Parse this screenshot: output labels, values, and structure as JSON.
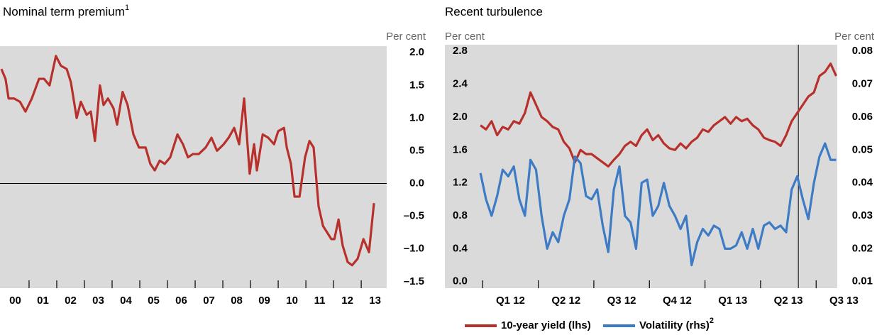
{
  "chart_data": [
    {
      "type": "line",
      "title": "Nominal term premium",
      "title_footnote": "1",
      "y_axis_label": "Per cent",
      "xlim": [
        1999.95,
        2013.92
      ],
      "xticks": [
        {
          "value": 2000.5,
          "label": "00"
        },
        {
          "value": 2001.5,
          "label": "01"
        },
        {
          "value": 2002.5,
          "label": "02"
        },
        {
          "value": 2003.5,
          "label": "03"
        },
        {
          "value": 2004.5,
          "label": "04"
        },
        {
          "value": 2005.5,
          "label": "05"
        },
        {
          "value": 2006.5,
          "label": "06"
        },
        {
          "value": 2007.5,
          "label": "07"
        },
        {
          "value": 2008.5,
          "label": "08"
        },
        {
          "value": 2009.5,
          "label": "09"
        },
        {
          "value": 2010.5,
          "label": "10"
        },
        {
          "value": 2011.5,
          "label": "11"
        },
        {
          "value": 2012.5,
          "label": "12"
        },
        {
          "value": 2013.5,
          "label": "13"
        }
      ],
      "ylim": [
        -1.6,
        2.1
      ],
      "yticks": [
        {
          "value": 2,
          "label": "2.0"
        },
        1.5,
        {
          "value": 1,
          "label": "1.0"
        },
        0.5,
        {
          "value": 0,
          "label": "0.0"
        },
        {
          "value": -0.5,
          "label": "–0.5"
        },
        {
          "value": -1,
          "label": "–1.0"
        },
        {
          "value": -1.5,
          "label": "–1.5"
        }
      ],
      "zero_line": true,
      "x": [
        2000.0,
        2000.15,
        2000.26,
        2000.46,
        2000.67,
        2000.87,
        2001.1,
        2001.36,
        2001.54,
        2001.74,
        2001.97,
        2002.15,
        2002.36,
        2002.51,
        2002.72,
        2002.87,
        2003.08,
        2003.23,
        2003.38,
        2003.56,
        2003.69,
        2003.85,
        2004.05,
        2004.18,
        2004.38,
        2004.56,
        2004.77,
        2004.97,
        2005.21,
        2005.38,
        2005.54,
        2005.72,
        2005.9,
        2006.1,
        2006.36,
        2006.56,
        2006.74,
        2006.92,
        2007.13,
        2007.38,
        2007.59,
        2007.79,
        2008.03,
        2008.21,
        2008.41,
        2008.59,
        2008.77,
        2008.97,
        2009.13,
        2009.23,
        2009.44,
        2009.64,
        2009.85,
        2010.0,
        2010.21,
        2010.31,
        2010.46,
        2010.59,
        2010.77,
        2010.97,
        2011.13,
        2011.28,
        2011.46,
        2011.62,
        2011.77,
        2011.92,
        2012.03,
        2012.18,
        2012.33,
        2012.51,
        2012.67,
        2012.87,
        2013.08,
        2013.28,
        2013.46
      ],
      "series": [
        {
          "color": "#b8302c",
          "values": [
            1.75,
            1.6,
            1.3,
            1.3,
            1.25,
            1.1,
            1.3,
            1.6,
            1.6,
            1.5,
            1.95,
            1.8,
            1.75,
            1.55,
            1.0,
            1.25,
            1.05,
            1.1,
            0.65,
            1.5,
            1.2,
            1.3,
            1.15,
            0.9,
            1.4,
            1.2,
            0.75,
            0.55,
            0.55,
            0.3,
            0.2,
            0.35,
            0.3,
            0.4,
            0.75,
            0.6,
            0.4,
            0.45,
            0.45,
            0.55,
            0.7,
            0.5,
            0.6,
            0.7,
            0.85,
            0.6,
            1.3,
            0.15,
            0.6,
            0.2,
            0.75,
            0.7,
            0.6,
            0.8,
            0.85,
            0.55,
            0.3,
            -0.2,
            -0.2,
            0.4,
            0.65,
            0.55,
            -0.35,
            -0.65,
            -0.75,
            -0.85,
            -0.85,
            -0.55,
            -0.95,
            -1.2,
            -1.25,
            -1.15,
            -0.85,
            -1.05,
            -0.3
          ]
        }
      ]
    },
    {
      "type": "line",
      "title": "Recent turbulence",
      "y_axis_label": "Per cent",
      "y2_axis_label": "Per cent",
      "xlim": [
        2011.83,
        2013.595
      ],
      "xticks": [
        {
          "value": 2012.125,
          "label": "Q1 12"
        },
        {
          "value": 2012.375,
          "label": "Q2 12"
        },
        {
          "value": 2012.625,
          "label": "Q3 12"
        },
        {
          "value": 2012.875,
          "label": "Q4 12"
        },
        {
          "value": 2013.125,
          "label": "Q1 13"
        },
        {
          "value": 2013.375,
          "label": "Q2 13"
        },
        {
          "value": 2013.625,
          "label": "Q3 13"
        }
      ],
      "ylim": [
        -0.08,
        2.88
      ],
      "yticks": [
        {
          "value": 0,
          "label": "0.0"
        },
        0.4,
        0.8,
        1.2,
        1.6,
        {
          "value": 2,
          "label": "2.0"
        },
        2.4,
        2.8
      ],
      "y2lim": [
        0.008,
        0.082
      ],
      "y2ticks": [
        0.01,
        0.02,
        0.03,
        0.04,
        0.05,
        0.06,
        0.07,
        0.08
      ],
      "vline_x": 2013.42,
      "legend": "bottom",
      "x": [
        2011.99,
        2012.015,
        2012.04,
        2012.065,
        2012.09,
        2012.115,
        2012.14,
        2012.165,
        2012.19,
        2012.215,
        2012.24,
        2012.265,
        2012.29,
        2012.315,
        2012.34,
        2012.365,
        2012.39,
        2012.415,
        2012.44,
        2012.465,
        2012.49,
        2012.515,
        2012.54,
        2012.565,
        2012.59,
        2012.615,
        2012.64,
        2012.665,
        2012.69,
        2012.715,
        2012.74,
        2012.765,
        2012.79,
        2012.815,
        2012.84,
        2012.865,
        2012.89,
        2012.915,
        2012.94,
        2012.965,
        2012.99,
        2013.015,
        2013.04,
        2013.065,
        2013.09,
        2013.115,
        2013.14,
        2013.165,
        2013.19,
        2013.215,
        2013.24,
        2013.265,
        2013.29,
        2013.315,
        2013.34,
        2013.365,
        2013.39,
        2013.415,
        2013.44,
        2013.465,
        2013.49,
        2013.515,
        2013.54,
        2013.565,
        2013.59
      ],
      "series": [
        {
          "name": "10-year yield (lhs)",
          "color": "#b8302c",
          "values": [
            1.9,
            1.85,
            1.95,
            1.78,
            1.88,
            1.85,
            1.95,
            1.92,
            2.05,
            2.3,
            2.15,
            2.0,
            1.95,
            1.88,
            1.85,
            1.7,
            1.62,
            1.45,
            1.6,
            1.55,
            1.55,
            1.5,
            1.45,
            1.4,
            1.48,
            1.55,
            1.65,
            1.7,
            1.65,
            1.78,
            1.85,
            1.72,
            1.78,
            1.68,
            1.62,
            1.6,
            1.68,
            1.62,
            1.7,
            1.75,
            1.85,
            1.82,
            1.9,
            1.95,
            2.0,
            1.92,
            2.0,
            1.95,
            1.98,
            1.9,
            1.85,
            1.75,
            1.72,
            1.7,
            1.65,
            1.78,
            1.95,
            2.05,
            2.15,
            2.25,
            2.3,
            2.5,
            2.55,
            2.65,
            2.5
          ]
        },
        {
          "name": "Volatility (rhs)",
          "footnote": "2",
          "color": "#3d7bc4",
          "axis": "y2",
          "values": [
            0.043,
            0.035,
            0.03,
            0.036,
            0.044,
            0.042,
            0.045,
            0.035,
            0.03,
            0.047,
            0.044,
            0.03,
            0.02,
            0.025,
            0.022,
            0.03,
            0.035,
            0.048,
            0.046,
            0.036,
            0.035,
            0.038,
            0.027,
            0.019,
            0.038,
            0.045,
            0.03,
            0.028,
            0.02,
            0.04,
            0.041,
            0.03,
            0.033,
            0.04,
            0.033,
            0.03,
            0.026,
            0.03,
            0.015,
            0.022,
            0.026,
            0.024,
            0.027,
            0.026,
            0.02,
            0.02,
            0.021,
            0.025,
            0.02,
            0.026,
            0.02,
            0.027,
            0.028,
            0.026,
            0.027,
            0.025,
            0.038,
            0.042,
            0.035,
            0.029,
            0.04,
            0.048,
            0.052,
            0.047,
            0.047
          ]
        }
      ]
    }
  ]
}
